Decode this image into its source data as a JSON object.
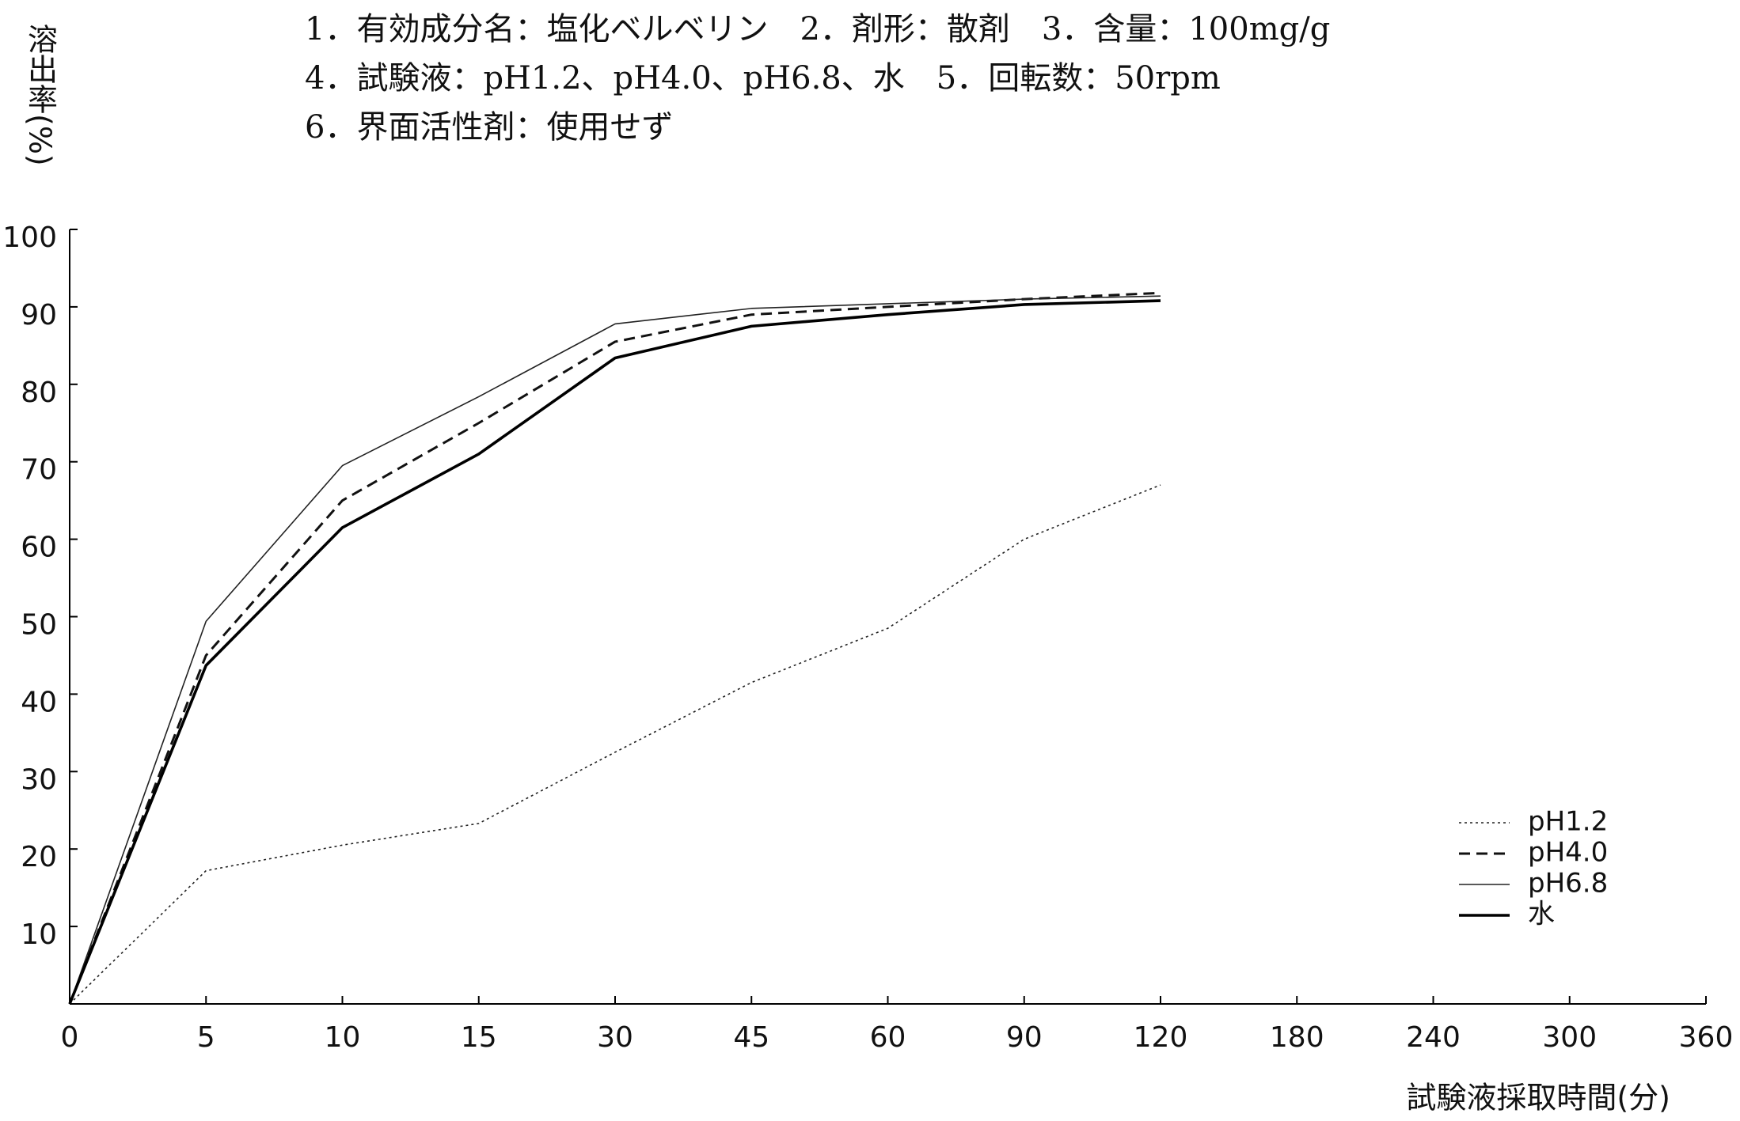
{
  "chart_data": {
    "type": "line",
    "subtitle_lines": [
      "1．有効成分名：塩化ベルベリン　2．剤形：散剤　3．含量：100mg/g",
      "4．試験液：pH1.2、pH4.0、pH6.8、水　5．回転数：50rpm",
      "6．界面活性剤：使用せず"
    ],
    "y_label": "溶出率(%)",
    "x_label": "試験液採取時間(分)",
    "categories": [
      "0",
      "5",
      "10",
      "15",
      "30",
      "45",
      "60",
      "90",
      "120",
      "180",
      "240",
      "300",
      "360"
    ],
    "series": [
      {
        "name": "pH1.2",
        "color": "#222222",
        "style": "dotted",
        "values": [
          0,
          17.2,
          20.5,
          23.3,
          32.5,
          41.5,
          48.5,
          60,
          67,
          null,
          null,
          null,
          null
        ]
      },
      {
        "name": "pH4.0",
        "color": "#111111",
        "style": "dashed",
        "values": [
          0,
          45,
          65,
          75,
          85.5,
          89,
          90,
          91,
          91.8,
          null,
          null,
          null,
          null
        ]
      },
      {
        "name": "pH6.8",
        "color": "#222222",
        "style": "thin",
        "values": [
          0,
          49.4,
          69.5,
          78.4,
          87.8,
          89.8,
          90.4,
          91,
          91.4,
          null,
          null,
          null,
          null
        ]
      },
      {
        "name": "水",
        "color": "#000000",
        "style": "thick",
        "values": [
          0,
          43.7,
          61.5,
          71,
          83.4,
          87.5,
          89,
          90.3,
          90.8,
          null,
          null,
          null,
          null
        ]
      }
    ],
    "ylim": [
      0,
      100
    ],
    "yticks": [
      10,
      20,
      30,
      40,
      50,
      60,
      70,
      80,
      90,
      100
    ],
    "legend": "lower-right"
  }
}
